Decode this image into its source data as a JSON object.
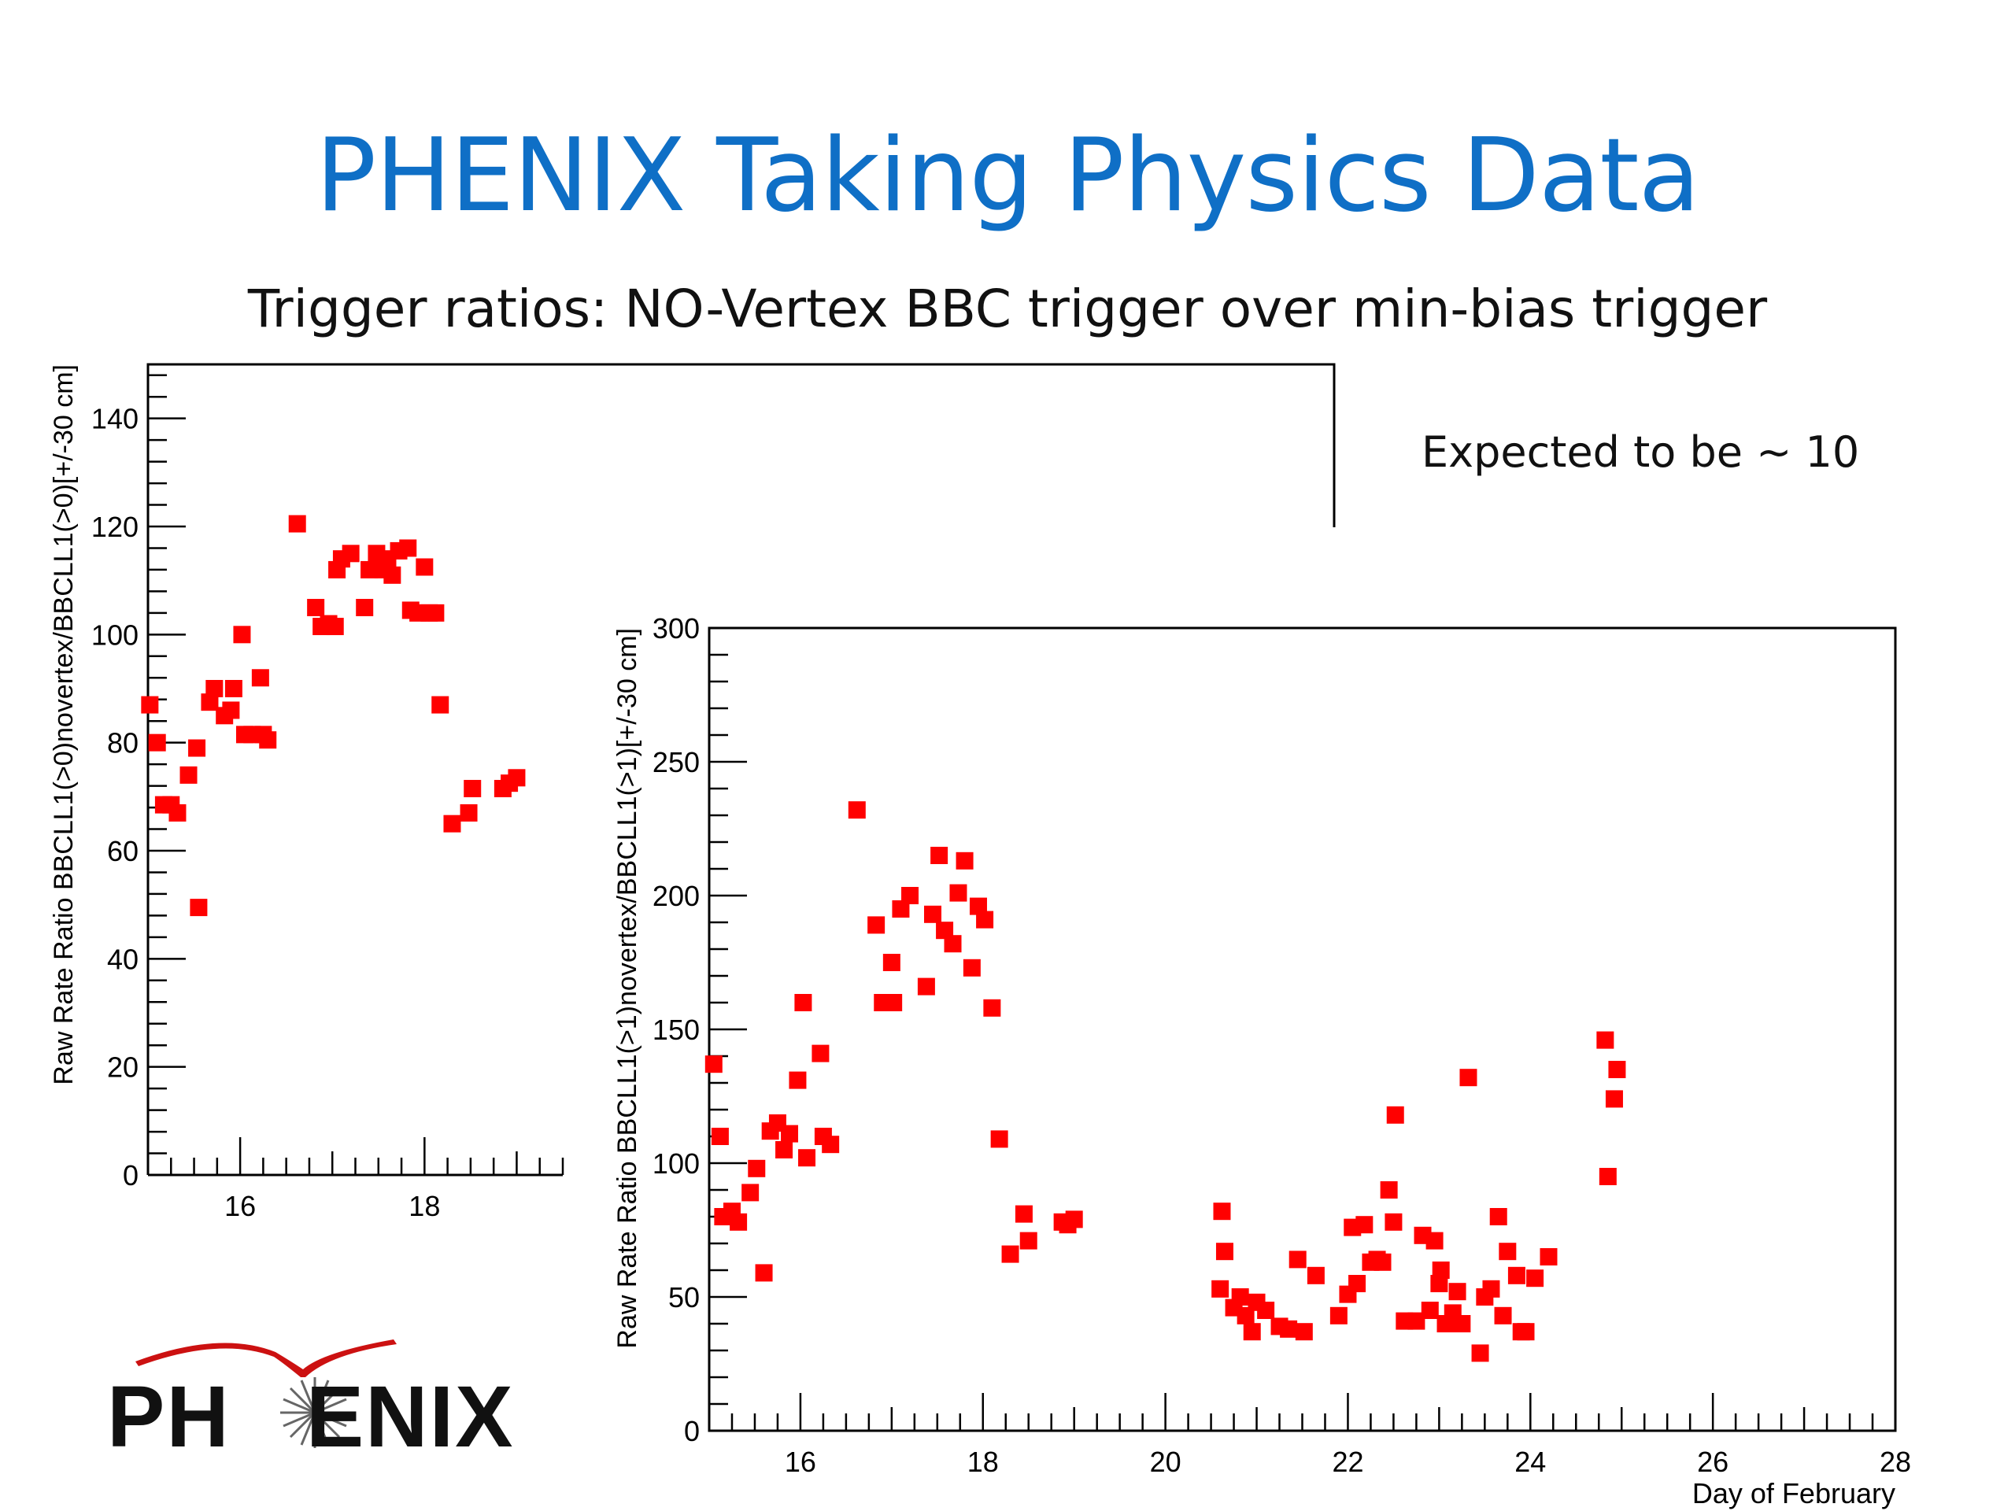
{
  "slide": {
    "title": "PHENIX Taking Physics Data",
    "subtitle": "Trigger ratios: NO-Vertex BBC trigger over min-bias trigger",
    "note": "Expected to be ~ 10",
    "logo_text_left": "PH",
    "logo_text_right": "ENIX"
  },
  "colors": {
    "title": "#0f6fc6",
    "marker": "#ff0000",
    "axis": "#000000",
    "logo_arc": "#cc1111"
  },
  "icons": {
    "logo": "phenix-logo-icon"
  },
  "chart_data": [
    {
      "type": "scatter",
      "title": "",
      "xlabel": "",
      "ylabel": "Raw Rate Ratio BBCLL1(>0)novertex/BBCLL1(>0)[+/-30 cm]",
      "xlim": [
        15.0,
        19.5
      ],
      "ylim": [
        0,
        150
      ],
      "x_ticks": [
        16,
        18
      ],
      "x_tick_labels": [
        "16",
        "18"
      ],
      "y_ticks": [
        0,
        20,
        40,
        60,
        80,
        100,
        120,
        140
      ],
      "y_tick_labels": [
        "0",
        "20",
        "40",
        "60",
        "80",
        "100",
        "120",
        "140"
      ],
      "grid": false,
      "marker": "square",
      "points": [
        [
          15.02,
          87
        ],
        [
          15.1,
          80
        ],
        [
          15.17,
          68.5
        ],
        [
          15.25,
          68.5
        ],
        [
          15.32,
          67
        ],
        [
          15.44,
          74
        ],
        [
          15.53,
          79
        ],
        [
          15.55,
          49.5
        ],
        [
          15.67,
          87.5
        ],
        [
          15.72,
          90
        ],
        [
          15.83,
          85
        ],
        [
          15.9,
          86
        ],
        [
          15.93,
          90
        ],
        [
          16.02,
          100
        ],
        [
          16.05,
          81.5
        ],
        [
          16.13,
          81.5
        ],
        [
          16.22,
          92
        ],
        [
          16.25,
          81.5
        ],
        [
          16.3,
          80.5
        ],
        [
          16.62,
          120.5
        ],
        [
          16.82,
          105
        ],
        [
          16.88,
          101.5
        ],
        [
          16.96,
          102
        ],
        [
          17.03,
          101.5
        ],
        [
          17.05,
          112
        ],
        [
          17.1,
          114
        ],
        [
          17.2,
          115
        ],
        [
          17.35,
          105
        ],
        [
          17.4,
          112
        ],
        [
          17.48,
          115
        ],
        [
          17.55,
          112
        ],
        [
          17.6,
          114
        ],
        [
          17.65,
          111
        ],
        [
          17.72,
          115.5
        ],
        [
          17.82,
          116
        ],
        [
          17.85,
          104.5
        ],
        [
          17.93,
          104
        ],
        [
          18.0,
          112.5
        ],
        [
          18.05,
          104
        ],
        [
          18.12,
          104
        ],
        [
          18.17,
          87
        ],
        [
          18.3,
          65
        ],
        [
          18.48,
          67
        ],
        [
          18.52,
          71.5
        ],
        [
          18.85,
          71.5
        ],
        [
          18.92,
          72.5
        ],
        [
          19.0,
          73.5
        ]
      ]
    },
    {
      "type": "scatter",
      "title": "",
      "xlabel": "Day of February",
      "ylabel": "Raw Rate Ratio BBCLL1(>1)novertex/BBCLL1(>1)[+/-30 cm]",
      "xlim": [
        15.0,
        28.0
      ],
      "ylim": [
        0,
        300
      ],
      "x_ticks": [
        16,
        18,
        20,
        22,
        24,
        26,
        28
      ],
      "x_tick_labels": [
        "16",
        "18",
        "20",
        "22",
        "24",
        "26",
        "28"
      ],
      "y_ticks": [
        0,
        50,
        100,
        150,
        200,
        250,
        300
      ],
      "y_tick_labels": [
        "0",
        "50",
        "100",
        "150",
        "200",
        "250",
        "300"
      ],
      "grid": false,
      "marker": "square",
      "points": [
        [
          15.05,
          137
        ],
        [
          15.12,
          110
        ],
        [
          15.15,
          80
        ],
        [
          15.25,
          82
        ],
        [
          15.32,
          78
        ],
        [
          15.45,
          89
        ],
        [
          15.52,
          98
        ],
        [
          15.6,
          59
        ],
        [
          15.67,
          112
        ],
        [
          15.75,
          115
        ],
        [
          15.82,
          105
        ],
        [
          15.88,
          111
        ],
        [
          15.97,
          131
        ],
        [
          16.03,
          160
        ],
        [
          16.07,
          102
        ],
        [
          16.22,
          141
        ],
        [
          16.25,
          110
        ],
        [
          16.33,
          107
        ],
        [
          16.62,
          232
        ],
        [
          16.83,
          189
        ],
        [
          16.9,
          160
        ],
        [
          17.0,
          175
        ],
        [
          17.02,
          160
        ],
        [
          17.1,
          195
        ],
        [
          17.2,
          200
        ],
        [
          17.38,
          166
        ],
        [
          17.45,
          193
        ],
        [
          17.52,
          215
        ],
        [
          17.58,
          187
        ],
        [
          17.67,
          182
        ],
        [
          17.73,
          201
        ],
        [
          17.8,
          213
        ],
        [
          17.88,
          173
        ],
        [
          17.95,
          196
        ],
        [
          18.02,
          191
        ],
        [
          18.1,
          158
        ],
        [
          18.18,
          109
        ],
        [
          18.3,
          66
        ],
        [
          18.45,
          81
        ],
        [
          18.5,
          71
        ],
        [
          18.87,
          78
        ],
        [
          18.93,
          77
        ],
        [
          19.0,
          79
        ],
        [
          20.6,
          53
        ],
        [
          20.62,
          82
        ],
        [
          20.65,
          67
        ],
        [
          20.75,
          46
        ],
        [
          20.82,
          50
        ],
        [
          20.88,
          43
        ],
        [
          20.95,
          37
        ],
        [
          21.0,
          48
        ],
        [
          21.1,
          45
        ],
        [
          21.25,
          39
        ],
        [
          21.35,
          38
        ],
        [
          21.45,
          64
        ],
        [
          21.52,
          37
        ],
        [
          21.65,
          58
        ],
        [
          21.9,
          43
        ],
        [
          22.0,
          51
        ],
        [
          22.05,
          76
        ],
        [
          22.1,
          55
        ],
        [
          22.18,
          77
        ],
        [
          22.25,
          63
        ],
        [
          22.32,
          64
        ],
        [
          22.38,
          63
        ],
        [
          22.45,
          90
        ],
        [
          22.5,
          78
        ],
        [
          22.52,
          118
        ],
        [
          22.62,
          41
        ],
        [
          22.75,
          41
        ],
        [
          22.82,
          73
        ],
        [
          22.9,
          45
        ],
        [
          22.95,
          71
        ],
        [
          23.0,
          55
        ],
        [
          23.02,
          60
        ],
        [
          23.07,
          40
        ],
        [
          23.15,
          44
        ],
        [
          23.2,
          52
        ],
        [
          23.25,
          40
        ],
        [
          23.32,
          132
        ],
        [
          23.45,
          29
        ],
        [
          23.5,
          50
        ],
        [
          23.57,
          53
        ],
        [
          23.65,
          80
        ],
        [
          23.7,
          43
        ],
        [
          23.75,
          67
        ],
        [
          23.85,
          58
        ],
        [
          23.9,
          37
        ],
        [
          23.95,
          37
        ],
        [
          24.05,
          57
        ],
        [
          24.2,
          65
        ],
        [
          24.82,
          146
        ],
        [
          24.85,
          95
        ],
        [
          24.92,
          124
        ],
        [
          24.95,
          135
        ]
      ]
    }
  ]
}
